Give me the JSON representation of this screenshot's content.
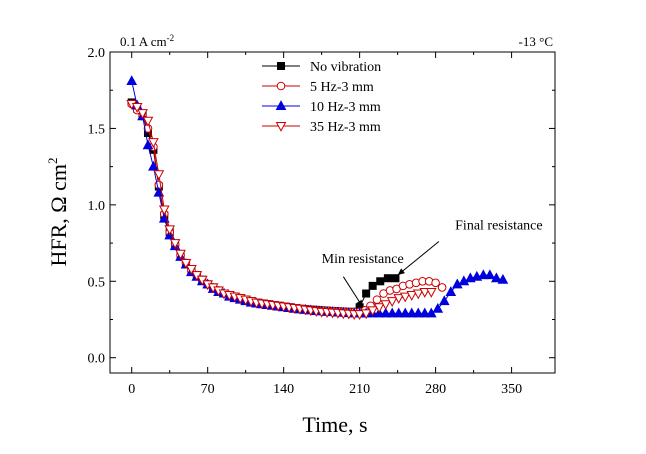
{
  "chart_data": {
    "type": "line",
    "xlabel": "Time, s",
    "ylabel_main": "HFR, Ω cm",
    "ylabel_sup": "2",
    "x_ticks": [
      0,
      70,
      140,
      210,
      280,
      350
    ],
    "y_ticks": [
      "0.0",
      "0.5",
      "1.0",
      "1.5",
      "2.0"
    ],
    "xlim": [
      -20,
      390
    ],
    "ylim": [
      -0.1,
      2.0
    ],
    "corner_left": {
      "main": "0.1 A cm",
      "sup": "-2"
    },
    "corner_right": "-13 °C",
    "annotations": [
      {
        "text": "Min resistance",
        "text_x": 175,
        "text_y": 0.62,
        "tail_x": 195,
        "tail_y": 0.53,
        "head_x": 213,
        "head_y": 0.33
      },
      {
        "text": "Final resistance",
        "text_x": 298,
        "text_y": 0.84,
        "tail_x": 283,
        "tail_y": 0.76,
        "head_x": 245,
        "head_y": 0.54
      }
    ],
    "series": [
      {
        "name": "No vibration",
        "color": "#000000",
        "marker": "square",
        "filled": true,
        "points": [
          [
            0,
            1.67
          ],
          [
            5,
            1.63
          ],
          [
            10,
            1.59
          ],
          [
            15,
            1.47
          ],
          [
            20,
            1.36
          ],
          [
            25,
            1.12
          ],
          [
            30,
            0.93
          ],
          [
            35,
            0.82
          ],
          [
            40,
            0.74
          ],
          [
            45,
            0.67
          ],
          [
            50,
            0.62
          ],
          [
            55,
            0.57
          ],
          [
            60,
            0.54
          ],
          [
            65,
            0.51
          ],
          [
            70,
            0.48
          ],
          [
            75,
            0.46
          ],
          [
            80,
            0.44
          ],
          [
            85,
            0.42
          ],
          [
            90,
            0.41
          ],
          [
            95,
            0.4
          ],
          [
            100,
            0.39
          ],
          [
            105,
            0.38
          ],
          [
            110,
            0.37
          ],
          [
            115,
            0.36
          ],
          [
            120,
            0.355
          ],
          [
            125,
            0.35
          ],
          [
            130,
            0.345
          ],
          [
            135,
            0.34
          ],
          [
            140,
            0.335
          ],
          [
            145,
            0.33
          ],
          [
            150,
            0.325
          ],
          [
            155,
            0.32
          ],
          [
            160,
            0.318
          ],
          [
            165,
            0.315
          ],
          [
            170,
            0.313
          ],
          [
            175,
            0.31
          ],
          [
            180,
            0.308
          ],
          [
            185,
            0.306
          ],
          [
            190,
            0.304
          ],
          [
            195,
            0.302
          ],
          [
            200,
            0.3
          ],
          [
            205,
            0.3
          ],
          [
            210,
            0.33
          ],
          [
            216,
            0.42
          ],
          [
            222,
            0.47
          ],
          [
            229,
            0.5
          ],
          [
            236,
            0.52
          ],
          [
            243,
            0.52
          ]
        ]
      },
      {
        "name": "5 Hz-3 mm",
        "color": "#cc0000",
        "marker": "circle",
        "filled": false,
        "points": [
          [
            0,
            1.66
          ],
          [
            5,
            1.62
          ],
          [
            10,
            1.58
          ],
          [
            15,
            1.5
          ],
          [
            20,
            1.38
          ],
          [
            25,
            1.13
          ],
          [
            30,
            0.94
          ],
          [
            35,
            0.82
          ],
          [
            40,
            0.74
          ],
          [
            45,
            0.67
          ],
          [
            50,
            0.62
          ],
          [
            55,
            0.57
          ],
          [
            60,
            0.54
          ],
          [
            65,
            0.51
          ],
          [
            70,
            0.48
          ],
          [
            75,
            0.46
          ],
          [
            80,
            0.44
          ],
          [
            85,
            0.42
          ],
          [
            90,
            0.41
          ],
          [
            95,
            0.4
          ],
          [
            100,
            0.39
          ],
          [
            105,
            0.38
          ],
          [
            110,
            0.37
          ],
          [
            115,
            0.36
          ],
          [
            120,
            0.355
          ],
          [
            125,
            0.35
          ],
          [
            130,
            0.345
          ],
          [
            135,
            0.34
          ],
          [
            140,
            0.335
          ],
          [
            145,
            0.33
          ],
          [
            150,
            0.325
          ],
          [
            155,
            0.32
          ],
          [
            160,
            0.318
          ],
          [
            165,
            0.315
          ],
          [
            170,
            0.313
          ],
          [
            175,
            0.31
          ],
          [
            180,
            0.308
          ],
          [
            185,
            0.306
          ],
          [
            190,
            0.304
          ],
          [
            195,
            0.302
          ],
          [
            200,
            0.3
          ],
          [
            205,
            0.3
          ],
          [
            210,
            0.3
          ],
          [
            215,
            0.31
          ],
          [
            220,
            0.34
          ],
          [
            226,
            0.38
          ],
          [
            232,
            0.42
          ],
          [
            238,
            0.44
          ],
          [
            244,
            0.45
          ],
          [
            250,
            0.47
          ],
          [
            256,
            0.48
          ],
          [
            262,
            0.49
          ],
          [
            268,
            0.5
          ],
          [
            274,
            0.5
          ],
          [
            280,
            0.49
          ],
          [
            286,
            0.46
          ]
        ]
      },
      {
        "name": "10 Hz-3 mm",
        "color": "#0000dd",
        "marker": "triangle-up",
        "filled": true,
        "points": [
          [
            0,
            1.81
          ],
          [
            5,
            1.65
          ],
          [
            10,
            1.58
          ],
          [
            15,
            1.39
          ],
          [
            20,
            1.25
          ],
          [
            25,
            1.08
          ],
          [
            30,
            0.91
          ],
          [
            35,
            0.8
          ],
          [
            40,
            0.73
          ],
          [
            45,
            0.66
          ],
          [
            50,
            0.61
          ],
          [
            55,
            0.56
          ],
          [
            60,
            0.53
          ],
          [
            65,
            0.5
          ],
          [
            70,
            0.48
          ],
          [
            75,
            0.45
          ],
          [
            80,
            0.43
          ],
          [
            85,
            0.42
          ],
          [
            90,
            0.4
          ],
          [
            95,
            0.39
          ],
          [
            100,
            0.38
          ],
          [
            105,
            0.37
          ],
          [
            110,
            0.36
          ],
          [
            115,
            0.355
          ],
          [
            120,
            0.35
          ],
          [
            125,
            0.345
          ],
          [
            130,
            0.34
          ],
          [
            135,
            0.335
          ],
          [
            140,
            0.33
          ],
          [
            145,
            0.325
          ],
          [
            150,
            0.32
          ],
          [
            155,
            0.316
          ],
          [
            160,
            0.313
          ],
          [
            165,
            0.31
          ],
          [
            170,
            0.306
          ],
          [
            175,
            0.303
          ],
          [
            180,
            0.3
          ],
          [
            185,
            0.298
          ],
          [
            190,
            0.296
          ],
          [
            195,
            0.294
          ],
          [
            200,
            0.292
          ],
          [
            205,
            0.29
          ],
          [
            210,
            0.29
          ],
          [
            216,
            0.29
          ],
          [
            222,
            0.29
          ],
          [
            228,
            0.29
          ],
          [
            234,
            0.29
          ],
          [
            240,
            0.29
          ],
          [
            246,
            0.29
          ],
          [
            252,
            0.29
          ],
          [
            258,
            0.29
          ],
          [
            264,
            0.29
          ],
          [
            270,
            0.29
          ],
          [
            276,
            0.29
          ],
          [
            282,
            0.32
          ],
          [
            288,
            0.37
          ],
          [
            294,
            0.43
          ],
          [
            300,
            0.48
          ],
          [
            306,
            0.5
          ],
          [
            312,
            0.52
          ],
          [
            318,
            0.53
          ],
          [
            324,
            0.54
          ],
          [
            330,
            0.54
          ],
          [
            336,
            0.52
          ],
          [
            342,
            0.51
          ]
        ]
      },
      {
        "name": "35 Hz-3 mm",
        "color": "#cc0000",
        "marker": "triangle-down",
        "filled": false,
        "points": [
          [
            0,
            1.66
          ],
          [
            5,
            1.64
          ],
          [
            10,
            1.6
          ],
          [
            15,
            1.55
          ],
          [
            20,
            1.41
          ],
          [
            25,
            1.2
          ],
          [
            30,
            0.97
          ],
          [
            35,
            0.84
          ],
          [
            40,
            0.75
          ],
          [
            45,
            0.68
          ],
          [
            50,
            0.62
          ],
          [
            55,
            0.58
          ],
          [
            60,
            0.54
          ],
          [
            65,
            0.51
          ],
          [
            70,
            0.48
          ],
          [
            75,
            0.46
          ],
          [
            80,
            0.44
          ],
          [
            85,
            0.42
          ],
          [
            90,
            0.41
          ],
          [
            95,
            0.4
          ],
          [
            100,
            0.39
          ],
          [
            105,
            0.38
          ],
          [
            110,
            0.37
          ],
          [
            115,
            0.36
          ],
          [
            120,
            0.355
          ],
          [
            125,
            0.35
          ],
          [
            130,
            0.345
          ],
          [
            135,
            0.34
          ],
          [
            140,
            0.335
          ],
          [
            145,
            0.33
          ],
          [
            150,
            0.325
          ],
          [
            155,
            0.32
          ],
          [
            160,
            0.315
          ],
          [
            165,
            0.31
          ],
          [
            170,
            0.305
          ],
          [
            175,
            0.3
          ],
          [
            180,
            0.298
          ],
          [
            185,
            0.295
          ],
          [
            190,
            0.293
          ],
          [
            195,
            0.29
          ],
          [
            200,
            0.288
          ],
          [
            205,
            0.285
          ],
          [
            210,
            0.285
          ],
          [
            216,
            0.29
          ],
          [
            222,
            0.31
          ],
          [
            228,
            0.33
          ],
          [
            234,
            0.35
          ],
          [
            240,
            0.37
          ],
          [
            246,
            0.39
          ],
          [
            252,
            0.4
          ],
          [
            258,
            0.41
          ],
          [
            264,
            0.42
          ],
          [
            270,
            0.43
          ],
          [
            276,
            0.43
          ]
        ]
      }
    ]
  }
}
